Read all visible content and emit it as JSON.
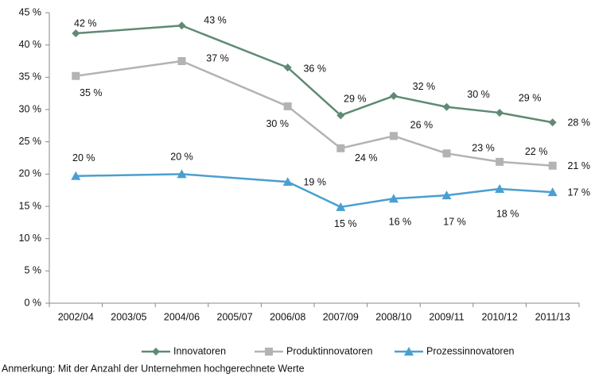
{
  "chart_data": {
    "type": "line",
    "categories": [
      "2002/04",
      "2003/05",
      "2004/06",
      "2005/07",
      "2006/08",
      "2007/09",
      "2008/10",
      "2009/11",
      "2010/12",
      "2011/13"
    ],
    "series": [
      {
        "name": "Innovatoren",
        "color": "#5f8a73",
        "marker": "diamond",
        "values": [
          41.8,
          null,
          43.0,
          null,
          36.5,
          29.1,
          32.1,
          30.4,
          29.5,
          28.0
        ],
        "value_labels": [
          "42 %",
          null,
          "43 %",
          null,
          "36 %",
          "29 %",
          "32 %",
          "30 %",
          "29 %",
          "28 %"
        ]
      },
      {
        "name": "Produktinnovatoren",
        "color": "#b3b3b3",
        "marker": "square",
        "values": [
          35.2,
          null,
          37.5,
          null,
          30.5,
          24.0,
          25.9,
          23.2,
          21.9,
          21.3
        ],
        "value_labels": [
          "35 %",
          null,
          "37 %",
          null,
          "30 %",
          "24 %",
          "26 %",
          "23 %",
          "22 %",
          "21 %"
        ]
      },
      {
        "name": "Prozessinnovatoren",
        "color": "#4a9fd0",
        "marker": "triangle",
        "values": [
          19.7,
          null,
          20.0,
          null,
          18.8,
          14.9,
          16.2,
          16.7,
          17.7,
          17.2
        ],
        "value_labels": [
          "20 %",
          null,
          "20 %",
          null,
          "19 %",
          "15 %",
          "16 %",
          "17 %",
          "18 %",
          "17 %"
        ]
      }
    ],
    "ylim": [
      0,
      45
    ],
    "yticks": [
      {
        "value": 0,
        "label": "0 %"
      },
      {
        "value": 5,
        "label": "5 %"
      },
      {
        "value": 10,
        "label": "10 %"
      },
      {
        "value": 15,
        "label": "15 %"
      },
      {
        "value": 20,
        "label": "20 %"
      },
      {
        "value": 25,
        "label": "25 %"
      },
      {
        "value": 30,
        "label": "30 %"
      },
      {
        "value": 35,
        "label": "35 %"
      },
      {
        "value": 40,
        "label": "40 %"
      },
      {
        "value": 45,
        "label": "45 %"
      }
    ],
    "grid": false,
    "legend": "bottom",
    "note": "Anmerkung: Mit der Anzahl der Unternehmen hochgerechnete Werte"
  }
}
